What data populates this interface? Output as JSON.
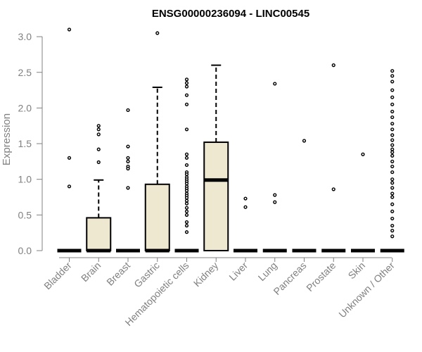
{
  "chart_data": {
    "type": "boxplot",
    "title": "ENSG00000236094 - LINC00545",
    "xlabel": "",
    "ylabel": "Expression",
    "ylim": [
      0,
      3.1
    ],
    "yticks": [
      "0.0",
      "0.5",
      "1.0",
      "1.5",
      "2.0",
      "2.5",
      "3.0"
    ],
    "box_fill": "#efe8d0",
    "categories": [
      "Bladder",
      "Brain",
      "Breast",
      "Gastric",
      "Hematopoietic cells",
      "Kidney",
      "Liver",
      "Lung",
      "Pancreas",
      "Prostate",
      "Skin",
      "Unknown / Other"
    ],
    "boxes": [
      {
        "q1": 0,
        "median": 0,
        "q3": 0,
        "whisker_low": 0,
        "whisker_high": 0,
        "outliers": [
          3.1,
          1.3,
          0.9
        ]
      },
      {
        "q1": 0,
        "median": 0,
        "q3": 0.46,
        "whisker_low": 0,
        "whisker_high": 0.99,
        "outliers": [
          1.75,
          1.7,
          1.63,
          1.42,
          1.24
        ]
      },
      {
        "q1": 0,
        "median": 0,
        "q3": 0,
        "whisker_low": 0,
        "whisker_high": 0,
        "outliers": [
          1.97,
          1.46,
          1.3,
          1.25,
          1.18,
          1.15,
          0.88
        ]
      },
      {
        "q1": 0,
        "median": 0,
        "q3": 0.93,
        "whisker_low": 0,
        "whisker_high": 2.29,
        "outliers": [
          3.05
        ]
      },
      {
        "q1": 0,
        "median": 0,
        "q3": 0,
        "whisker_low": 0,
        "whisker_high": 0,
        "outliers": [
          2.4,
          2.35,
          2.3,
          2.18,
          2.05,
          1.7,
          1.35,
          1.3,
          1.2,
          1.1,
          1.07,
          1.03,
          1.0,
          0.97,
          0.94,
          0.9,
          0.87,
          0.84,
          0.8,
          0.77,
          0.74,
          0.7,
          0.66,
          0.6,
          0.55,
          0.5,
          0.4,
          0.35,
          0.26
        ]
      },
      {
        "q1": 0,
        "median": 0.99,
        "q3": 1.52,
        "whisker_low": 0,
        "whisker_high": 2.6,
        "outliers": []
      },
      {
        "q1": 0,
        "median": 0,
        "q3": 0,
        "whisker_low": 0,
        "whisker_high": 0,
        "outliers": [
          0.73,
          0.61
        ]
      },
      {
        "q1": 0,
        "median": 0,
        "q3": 0,
        "whisker_low": 0,
        "whisker_high": 0,
        "outliers": [
          2.34,
          0.78,
          0.68
        ]
      },
      {
        "q1": 0,
        "median": 0,
        "q3": 0,
        "whisker_low": 0,
        "whisker_high": 0,
        "outliers": [
          1.54
        ]
      },
      {
        "q1": 0,
        "median": 0,
        "q3": 0,
        "whisker_low": 0,
        "whisker_high": 0,
        "outliers": [
          2.6,
          0.86
        ]
      },
      {
        "q1": 0,
        "median": 0,
        "q3": 0,
        "whisker_low": 0,
        "whisker_high": 0,
        "outliers": [
          1.35
        ]
      },
      {
        "q1": 0,
        "median": 0,
        "q3": 0,
        "whisker_low": 0,
        "whisker_high": 0,
        "outliers": [
          2.52,
          2.45,
          2.37,
          2.25,
          2.15,
          2.05,
          1.95,
          1.87,
          1.78,
          1.7,
          1.62,
          1.55,
          1.48,
          1.42,
          1.38,
          1.33,
          1.25,
          1.18,
          1.1,
          1.0,
          0.95,
          0.88,
          0.8,
          0.75,
          0.65,
          0.55,
          0.45,
          0.35,
          0.28,
          0.2
        ]
      }
    ]
  }
}
